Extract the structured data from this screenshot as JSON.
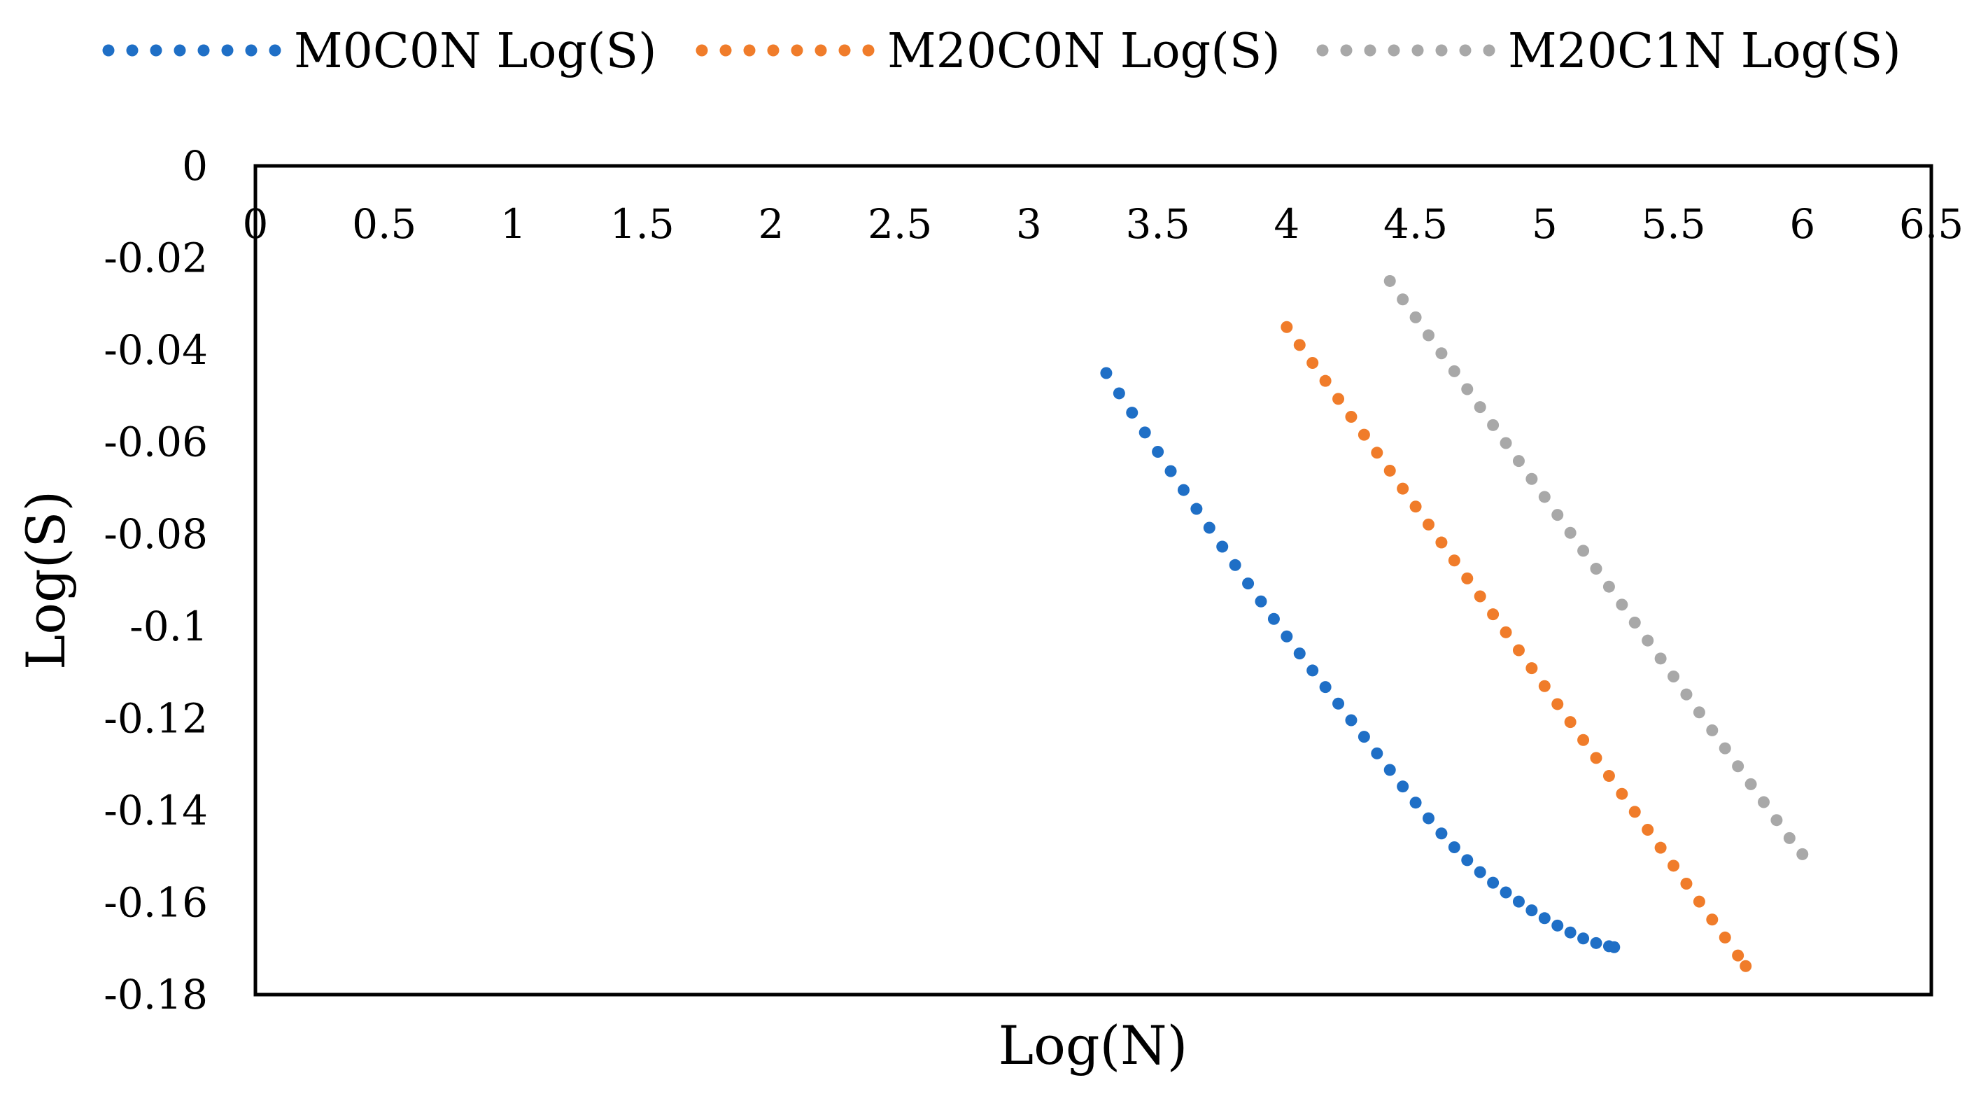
{
  "chart_data": {
    "type": "scatter",
    "title": "",
    "xlabel": "Log(N)",
    "ylabel": "Log(S)",
    "xlim": [
      0,
      6.5
    ],
    "ylim": [
      -0.18,
      0
    ],
    "x_ticks": [
      0,
      0.5,
      1,
      1.5,
      2,
      2.5,
      3,
      3.5,
      4,
      4.5,
      5,
      5.5,
      6,
      6.5
    ],
    "x_tick_labels": [
      "0",
      "0.5",
      "1",
      "1.5",
      "2",
      "2.5",
      "3",
      "3.5",
      "4",
      "4.5",
      "5",
      "5.5",
      "6",
      "6.5"
    ],
    "y_ticks": [
      0,
      -0.02,
      -0.04,
      -0.06,
      -0.08,
      -0.1,
      -0.12,
      -0.14,
      -0.16,
      -0.18
    ],
    "y_tick_labels": [
      "0",
      "-0.02",
      "-0.04",
      "-0.06",
      "-0.08",
      "-0.1",
      "-0.12",
      "-0.14",
      "-0.16",
      "-0.18"
    ],
    "grid": false,
    "legend_position": "top",
    "series": [
      {
        "name": "M0C0N Log(S)",
        "color": "#1f6fc6",
        "x": [
          3.3,
          3.35,
          3.4,
          3.45,
          3.5,
          3.55,
          3.6,
          3.65,
          3.7,
          3.75,
          3.8,
          3.85,
          3.9,
          3.95,
          4.0,
          4.05,
          4.1,
          4.15,
          4.2,
          4.25,
          4.3,
          4.35,
          4.4,
          4.45,
          4.5,
          4.55,
          4.6,
          4.65,
          4.7,
          4.75,
          4.8,
          4.85,
          4.9,
          4.95,
          5.0,
          5.05,
          5.1,
          5.15,
          5.2,
          5.25,
          5.27
        ],
        "y": [
          -0.045,
          -0.0494,
          -0.0536,
          -0.0579,
          -0.0621,
          -0.0663,
          -0.0704,
          -0.0745,
          -0.0786,
          -0.0827,
          -0.0867,
          -0.0907,
          -0.0946,
          -0.0984,
          -0.1022,
          -0.1059,
          -0.1096,
          -0.1132,
          -0.1168,
          -0.1204,
          -0.124,
          -0.1276,
          -0.1312,
          -0.1348,
          -0.1383,
          -0.1417,
          -0.145,
          -0.148,
          -0.1508,
          -0.1534,
          -0.1557,
          -0.1578,
          -0.1598,
          -0.1617,
          -0.1634,
          -0.165,
          -0.1665,
          -0.1678,
          -0.1688,
          -0.1695,
          -0.1697
        ]
      },
      {
        "name": "M20C0N Log(S)",
        "color": "#f07c2a",
        "x": [
          4.0,
          4.05,
          4.1,
          4.15,
          4.2,
          4.25,
          4.3,
          4.35,
          4.4,
          4.45,
          4.5,
          4.55,
          4.6,
          4.65,
          4.7,
          4.75,
          4.8,
          4.85,
          4.9,
          4.95,
          5.0,
          5.05,
          5.1,
          5.15,
          5.2,
          5.25,
          5.3,
          5.35,
          5.4,
          5.45,
          5.5,
          5.55,
          5.6,
          5.65,
          5.7,
          5.75,
          5.78
        ],
        "y": [
          -0.035,
          -0.0389,
          -0.0428,
          -0.0467,
          -0.0506,
          -0.0545,
          -0.0584,
          -0.0623,
          -0.0662,
          -0.0701,
          -0.074,
          -0.0779,
          -0.0818,
          -0.0857,
          -0.0896,
          -0.0935,
          -0.0974,
          -0.1013,
          -0.1052,
          -0.1091,
          -0.113,
          -0.1169,
          -0.1208,
          -0.1247,
          -0.1286,
          -0.1325,
          -0.1364,
          -0.1403,
          -0.1442,
          -0.1481,
          -0.152,
          -0.1559,
          -0.1598,
          -0.1637,
          -0.1676,
          -0.1715,
          -0.1738
        ]
      },
      {
        "name": "M20C1N Log(S)",
        "color": "#a8a8a8",
        "x": [
          4.4,
          4.45,
          4.5,
          4.55,
          4.6,
          4.65,
          4.7,
          4.75,
          4.8,
          4.85,
          4.9,
          4.95,
          5.0,
          5.05,
          5.1,
          5.15,
          5.2,
          5.25,
          5.3,
          5.35,
          5.4,
          5.45,
          5.5,
          5.55,
          5.6,
          5.65,
          5.7,
          5.75,
          5.8,
          5.85,
          5.9,
          5.95,
          6.0
        ],
        "y": [
          -0.025,
          -0.029,
          -0.0329,
          -0.0368,
          -0.0407,
          -0.0446,
          -0.0485,
          -0.0524,
          -0.0563,
          -0.0602,
          -0.0641,
          -0.068,
          -0.0719,
          -0.0758,
          -0.0797,
          -0.0836,
          -0.0875,
          -0.0914,
          -0.0953,
          -0.0992,
          -0.1031,
          -0.107,
          -0.1109,
          -0.1148,
          -0.1187,
          -0.1226,
          -0.1265,
          -0.1304,
          -0.1343,
          -0.1382,
          -0.1421,
          -0.146,
          -0.1495
        ]
      }
    ]
  }
}
